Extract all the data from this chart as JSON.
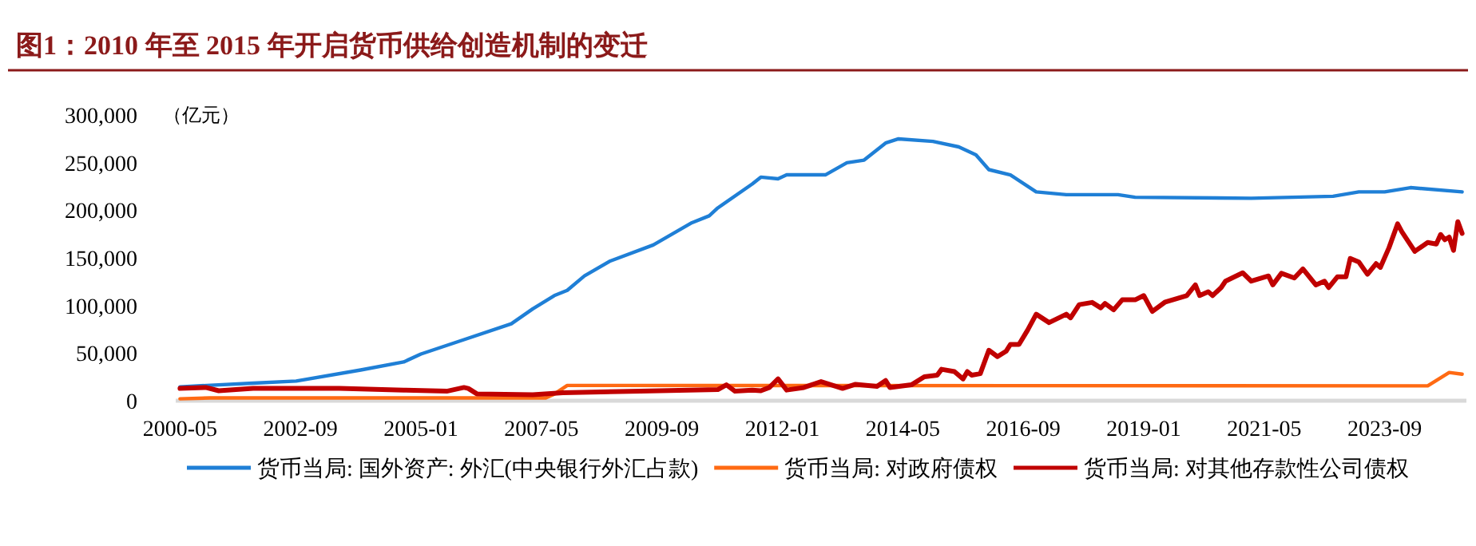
{
  "chart_data": {
    "type": "line",
    "title": "图1：2010 年至 2015 年开启货币供给创造机制的变迁",
    "ylabel": "（亿元）",
    "xlim": [
      "2000-04",
      "2025-04"
    ],
    "xticks": [
      "2000-05",
      "2002-09",
      "2005-01",
      "2007-05",
      "2009-09",
      "2012-01",
      "2014-05",
      "2016-09",
      "2019-01",
      "2021-05",
      "2023-09"
    ],
    "ylim": [
      0,
      300000
    ],
    "yticks": [
      0,
      {
        "value": 50000,
        "label": "50,000"
      },
      {
        "value": 100000,
        "label": "100,000"
      },
      {
        "value": 150000,
        "label": "150,000"
      },
      {
        "value": 200000,
        "label": "200,000"
      },
      {
        "value": 250000,
        "label": "250,000"
      },
      {
        "value": 300000,
        "label": "300,000"
      }
    ],
    "grid": false,
    "legend": "bottom",
    "marker": "none",
    "line_style": "solid",
    "series": [
      {
        "name": "货币当局: 国外资产: 外汇(中央银行外汇占款)",
        "color": "#1f7fd6",
        "x": [
          "2000-05",
          "2001-10",
          "2002-08",
          "2003-11",
          "2004-09",
          "2005-01",
          "2005-11",
          "2006-10",
          "2007-03",
          "2007-08",
          "2007-11",
          "2008-03",
          "2008-09",
          "2009-07",
          "2010-04",
          "2010-08",
          "2010-10",
          "2011-06",
          "2011-08",
          "2011-12",
          "2012-02",
          "2012-11",
          "2013-04",
          "2013-08",
          "2014-01",
          "2014-04",
          "2014-12",
          "2015-06",
          "2015-10",
          "2016-01",
          "2016-06",
          "2016-12",
          "2017-07",
          "2018-07",
          "2018-11",
          "2021-02",
          "2022-09",
          "2023-03",
          "2023-09",
          "2024-03",
          "2025-03"
        ],
        "values": [
          14600,
          18400,
          20600,
          32300,
          40700,
          49000,
          64100,
          80800,
          96500,
          110400,
          115900,
          131000,
          146700,
          163500,
          186900,
          194100,
          202400,
          227500,
          234700,
          233000,
          237100,
          237100,
          249800,
          252600,
          270500,
          274900,
          272200,
          266500,
          258100,
          242600,
          237100,
          219200,
          216300,
          216300,
          213600,
          212500,
          214600,
          219200,
          219200,
          223700,
          219200
        ]
      },
      {
        "name": "货币当局: 对政府债权",
        "color": "#ff6a13",
        "x": [
          "2000-05",
          "2000-12",
          "2007-06",
          "2007-08",
          "2007-11",
          "2024-07",
          "2024-12",
          "2025-03"
        ],
        "values": [
          2000,
          2900,
          2900,
          7000,
          16000,
          15600,
          29600,
          27900
        ]
      },
      {
        "name": "货币当局: 对其他存款性公司债权",
        "color": "#c00000",
        "x": [
          "2000-05",
          "2000-11",
          "2001-02",
          "2001-10",
          "2003-06",
          "2004-09",
          "2005-07",
          "2005-11",
          "2005-12",
          "2006-02",
          "2007-03",
          "2007-10",
          "2009-04",
          "2010-10",
          "2010-12",
          "2011-02",
          "2011-06",
          "2011-08",
          "2011-10",
          "2011-12",
          "2012-02",
          "2012-06",
          "2012-10",
          "2013-03",
          "2013-06",
          "2013-11",
          "2014-01",
          "2014-02",
          "2014-07",
          "2014-10",
          "2015-01",
          "2015-02",
          "2015-05",
          "2015-07",
          "2015-08",
          "2015-09",
          "2015-11",
          "2016-01",
          "2016-03",
          "2016-05",
          "2016-06",
          "2016-08",
          "2016-10",
          "2016-12",
          "2017-03",
          "2017-07",
          "2017-08",
          "2017-10",
          "2018-01",
          "2018-03",
          "2018-04",
          "2018-06",
          "2018-08",
          "2018-11",
          "2019-01",
          "2019-03",
          "2019-06",
          "2019-11",
          "2020-01",
          "2020-02",
          "2020-04",
          "2020-05",
          "2020-07",
          "2020-08",
          "2020-12",
          "2021-02",
          "2021-06",
          "2021-07",
          "2021-09",
          "2021-12",
          "2022-02",
          "2022-05",
          "2022-07",
          "2022-08",
          "2022-10",
          "2022-12",
          "2023-01",
          "2023-03",
          "2023-05",
          "2023-07",
          "2023-08",
          "2023-10",
          "2023-12",
          "2024-01",
          "2024-04",
          "2024-07",
          "2024-09",
          "2024-10",
          "2024-11",
          "2024-12",
          "2025-01",
          "2025-02",
          "2025-03"
        ],
        "values": [
          12900,
          13900,
          10500,
          12900,
          12900,
          11200,
          10000,
          13900,
          12900,
          7200,
          6200,
          8400,
          10000,
          11700,
          16700,
          10000,
          11200,
          10500,
          13900,
          22900,
          11200,
          13900,
          20100,
          12900,
          17200,
          15100,
          21200,
          13900,
          16700,
          25100,
          26800,
          33000,
          30600,
          22900,
          30600,
          26800,
          28400,
          53000,
          46300,
          51900,
          59100,
          59100,
          74100,
          90800,
          82000,
          90800,
          87000,
          100900,
          103200,
          97500,
          102100,
          95400,
          105900,
          105900,
          110400,
          93700,
          103700,
          110400,
          121600,
          110400,
          114300,
          110400,
          118800,
          125500,
          134300,
          125500,
          131000,
          121600,
          133800,
          128800,
          138400,
          121600,
          125500,
          118800,
          130000,
          130000,
          149400,
          145600,
          132700,
          143900,
          140000,
          160600,
          185700,
          177300,
          156800,
          166100,
          164500,
          174500,
          169000,
          171800,
          157800,
          188000,
          175700
        ]
      }
    ]
  }
}
